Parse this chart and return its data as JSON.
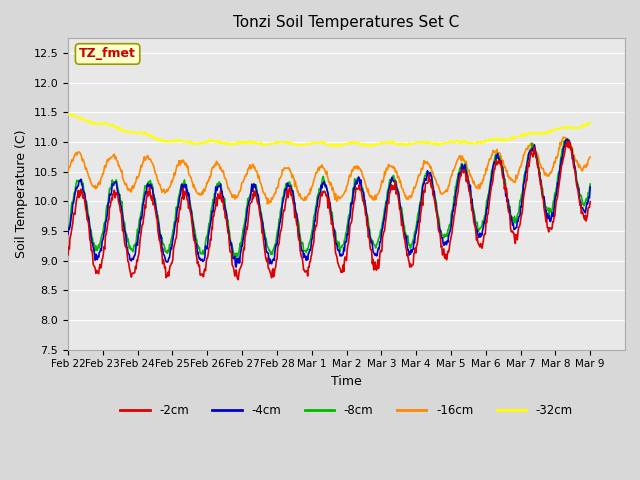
{
  "title": "Tonzi Soil Temperatures Set C",
  "xlabel": "Time",
  "ylabel": "Soil Temperature (C)",
  "ylim": [
    7.5,
    12.75
  ],
  "xlim": [
    0,
    16
  ],
  "background_color": "#d8d8d8",
  "plot_bg_color": "#e8e8e8",
  "grid_color": "white",
  "annotation_text": "TZ_fmet",
  "annotation_bg": "#ffffcc",
  "annotation_border": "#999900",
  "annotation_text_color": "#cc0000",
  "series_colors": {
    "-2cm": "#dd0000",
    "-4cm": "#0000cc",
    "-8cm": "#00bb00",
    "-16cm": "#ff8800",
    "-32cm": "#ffff00"
  },
  "legend_labels": [
    "-2cm",
    "-4cm",
    "-8cm",
    "-16cm",
    "-32cm"
  ],
  "xtick_positions": [
    0,
    1,
    2,
    3,
    4,
    5,
    6,
    7,
    8,
    9,
    10,
    11,
    12,
    13,
    14,
    15
  ],
  "xtick_labels": [
    "Feb 22",
    "Feb 23",
    "Feb 24",
    "Feb 25",
    "Feb 26",
    "Feb 27",
    "Feb 28",
    "Mar 1",
    "Mar 2",
    "Mar 3",
    "Mar 4",
    "Mar 5",
    "Mar 6",
    "Mar 7",
    "Mar 8",
    "Mar 9"
  ],
  "ytick_values": [
    7.5,
    8.0,
    8.5,
    9.0,
    9.5,
    10.0,
    10.5,
    11.0,
    11.5,
    12.0,
    12.5
  ]
}
